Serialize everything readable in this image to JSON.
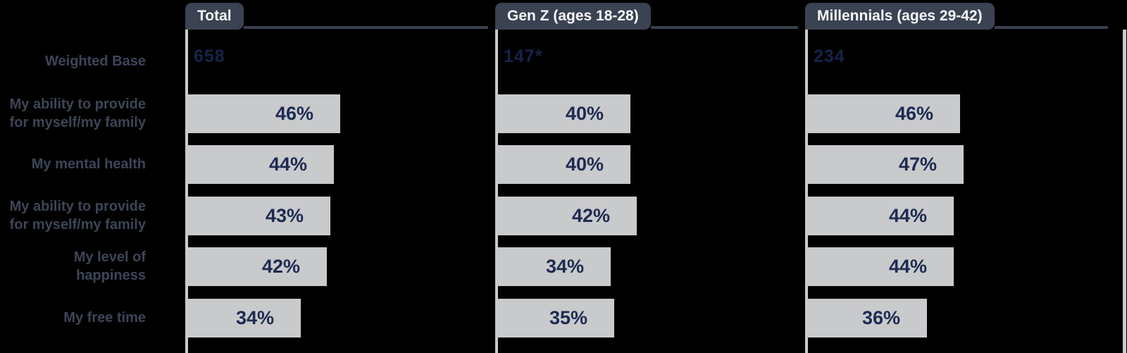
{
  "chart_data": {
    "type": "bar",
    "orientation": "horizontal",
    "unit": "%",
    "xlim": [
      0,
      50
    ],
    "categories": [
      "My ability to provide for myself/my family",
      "My mental health",
      "My ability to provide for myself/my family",
      "My level of happiness",
      "My free time"
    ],
    "series": [
      {
        "name": "Total",
        "weighted_base": "658",
        "values": [
          46,
          44,
          43,
          42,
          34
        ],
        "labels": [
          "46%",
          "44%",
          "43%",
          "42%",
          "34%"
        ]
      },
      {
        "name": "Gen Z (ages 18-28)",
        "weighted_base": "147*",
        "values": [
          40,
          40,
          42,
          34,
          35
        ],
        "labels": [
          "40%",
          "40%",
          "42%",
          "34%",
          "35%"
        ]
      },
      {
        "name": "Millennials (ages 29-42)",
        "weighted_base": "234",
        "values": [
          46,
          47,
          44,
          44,
          36
        ],
        "labels": [
          "46%",
          "47%",
          "44%",
          "44%",
          "36%"
        ]
      }
    ]
  },
  "row_labels": {
    "weighted_base": {
      "lines": [
        "Weighted Base"
      ]
    },
    "r1": {
      "lines": [
        "My ability to provide",
        "for myself/my family"
      ]
    },
    "r2": {
      "lines": [
        "My mental health"
      ]
    },
    "r3": {
      "lines": [
        "My ability to provide",
        "for myself/my family"
      ]
    },
    "r4": {
      "lines": [
        "My level of",
        "happiness"
      ]
    },
    "r5": {
      "lines": [
        "My free time"
      ]
    }
  },
  "colors": {
    "background": "#000000",
    "tab_background": "#3b4252",
    "tab_text": "#f7f7f8",
    "bar_fill": "#c9cacc",
    "bar_value_text": "#1d2b52",
    "weighted_base_text": "#152449",
    "row_label_text": "#3d4557",
    "header_line": "#394050"
  }
}
